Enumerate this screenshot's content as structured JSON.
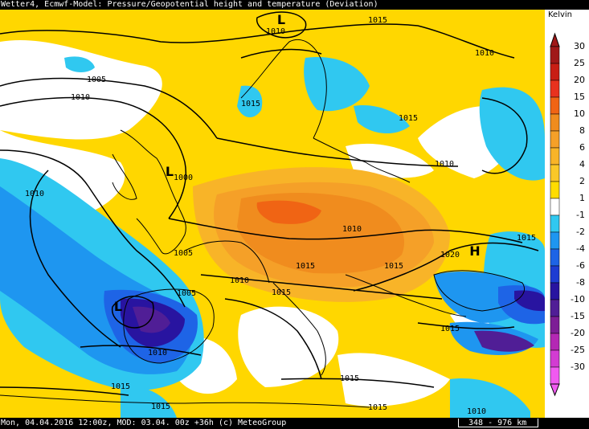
{
  "header": {
    "title": "Wetter4, Ecmwf-Model: Pressure/Geopotential height and temperature (Deviation)"
  },
  "legend": {
    "unit": "Kelvin",
    "levels": [
      {
        "label": "30",
        "color": "#a01818"
      },
      {
        "label": "25",
        "color": "#c81e14"
      },
      {
        "label": "20",
        "color": "#e8321e"
      },
      {
        "label": "15",
        "color": "#f06414"
      },
      {
        "label": "10",
        "color": "#f08c1e"
      },
      {
        "label": "8",
        "color": "#f5a028"
      },
      {
        "label": "6",
        "color": "#f8b428"
      },
      {
        "label": "4",
        "color": "#fac828"
      },
      {
        "label": "2",
        "color": "#ffdc00"
      },
      {
        "label": "1",
        "color": "#ffffff"
      },
      {
        "label": "-1",
        "color": "#30c8f0"
      },
      {
        "label": "-2",
        "color": "#1e96f0"
      },
      {
        "label": "-4",
        "color": "#1e64e6"
      },
      {
        "label": "-6",
        "color": "#1e3cd2"
      },
      {
        "label": "-8",
        "color": "#2814a0"
      },
      {
        "label": "-10",
        "color": "#501e96"
      },
      {
        "label": "-15",
        "color": "#7d1e96"
      },
      {
        "label": "-20",
        "color": "#b428b4"
      },
      {
        "label": "-25",
        "color": "#d23cd2"
      },
      {
        "label": "-30",
        "color": "#f05af0"
      }
    ]
  },
  "map": {
    "isobar_labels": [
      "1015",
      "1010",
      "1010",
      "1005",
      "1010",
      "1015",
      "1015",
      "1010",
      "1000",
      "1010",
      "1005",
      "1010",
      "1005",
      "1010",
      "1015",
      "1015",
      "1010",
      "1015",
      "1020",
      "1015",
      "1015",
      "1015",
      "1015",
      "1010",
      "1015",
      "1015"
    ],
    "pressure_centers": [
      "L",
      "L",
      "L",
      "H"
    ]
  },
  "footer": {
    "info": "Mon, 04.04.2016 12:00z, MOD: 03.04. 00z +36h (c) MeteoGroup",
    "scale": "348 - 976 km"
  }
}
